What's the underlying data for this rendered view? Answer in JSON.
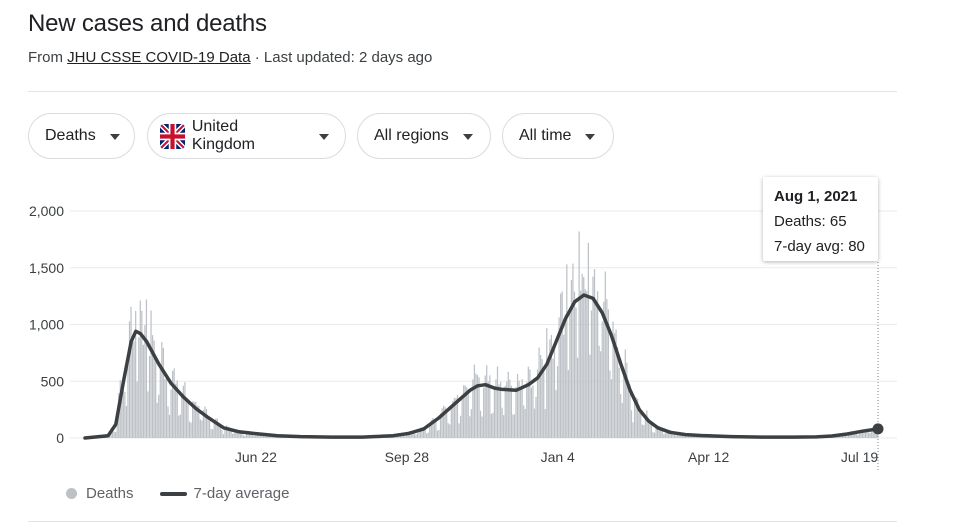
{
  "header": {
    "title": "New cases and deaths",
    "source_prefix": "From",
    "source_link": "JHU CSSE COVID-19 Data",
    "source_suffix": "· Last updated: 2 days ago"
  },
  "filters": {
    "metric": "Deaths",
    "country": "United Kingdom",
    "region": "All regions",
    "time": "All time"
  },
  "tooltip": {
    "date": "Aug 1, 2021",
    "deaths": "Deaths: 65",
    "avg": "7-day avg: 80"
  },
  "legend": {
    "bars": "Deaths",
    "line": "7-day average"
  },
  "colors": {
    "bars": "#bdc1c6",
    "line": "#3c4043",
    "grid": "#e8eaed"
  },
  "chart_data": {
    "type": "bar",
    "ylim": [
      0,
      2000
    ],
    "yticks": [
      0,
      500,
      1000,
      1500,
      2000
    ],
    "xticks": [
      {
        "label": "Jun 22",
        "day": 111
      },
      {
        "label": "Sep 28",
        "day": 209
      },
      {
        "label": "Jan 4",
        "day": 307
      },
      {
        "label": "Apr 12",
        "day": 405
      },
      {
        "label": "Jul 19",
        "day": 503
      }
    ],
    "start_date": "2020-03-03",
    "series": [
      {
        "name": "7-day average",
        "type": "line",
        "points": [
          [
            0,
            0
          ],
          [
            15,
            20
          ],
          [
            20,
            120
          ],
          [
            25,
            500
          ],
          [
            30,
            850
          ],
          [
            33,
            940
          ],
          [
            36,
            920
          ],
          [
            40,
            850
          ],
          [
            48,
            650
          ],
          [
            56,
            480
          ],
          [
            64,
            360
          ],
          [
            72,
            260
          ],
          [
            80,
            180
          ],
          [
            90,
            90
          ],
          [
            100,
            55
          ],
          [
            110,
            40
          ],
          [
            125,
            20
          ],
          [
            140,
            12
          ],
          [
            160,
            8
          ],
          [
            180,
            8
          ],
          [
            200,
            20
          ],
          [
            210,
            40
          ],
          [
            220,
            80
          ],
          [
            230,
            180
          ],
          [
            240,
            300
          ],
          [
            250,
            420
          ],
          [
            255,
            460
          ],
          [
            260,
            470
          ],
          [
            266,
            440
          ],
          [
            270,
            430
          ],
          [
            280,
            420
          ],
          [
            288,
            470
          ],
          [
            294,
            530
          ],
          [
            300,
            650
          ],
          [
            306,
            850
          ],
          [
            312,
            1050
          ],
          [
            318,
            1200
          ],
          [
            324,
            1260
          ],
          [
            330,
            1230
          ],
          [
            336,
            1100
          ],
          [
            342,
            900
          ],
          [
            348,
            650
          ],
          [
            354,
            420
          ],
          [
            360,
            250
          ],
          [
            366,
            150
          ],
          [
            372,
            90
          ],
          [
            380,
            50
          ],
          [
            390,
            30
          ],
          [
            400,
            22
          ],
          [
            420,
            12
          ],
          [
            440,
            8
          ],
          [
            460,
            8
          ],
          [
            475,
            10
          ],
          [
            485,
            18
          ],
          [
            495,
            35
          ],
          [
            505,
            60
          ],
          [
            515,
            80
          ]
        ]
      },
      {
        "name": "Deaths",
        "type": "bar",
        "peaks": [
          {
            "day": 33,
            "value": 1120
          },
          {
            "day": 40,
            "value": 1220
          },
          {
            "day": 300,
            "value": 970
          },
          {
            "day": 313,
            "value": 1530
          },
          {
            "day": 321,
            "value": 1820
          },
          {
            "day": 327,
            "value": 1720
          }
        ]
      }
    ]
  }
}
